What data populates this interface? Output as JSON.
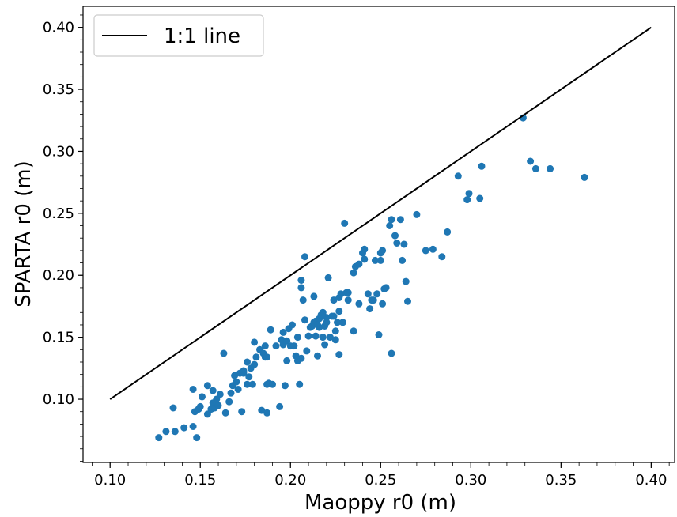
{
  "chart_data": {
    "type": "scatter",
    "title": "",
    "xlabel": "Maoppy r0 (m)",
    "ylabel": "SPARTA r0 (m)",
    "xlim": [
      0.085,
      0.413
    ],
    "ylim": [
      0.049,
      0.417
    ],
    "xticks": [
      "0.10",
      "0.15",
      "0.20",
      "0.25",
      "0.30",
      "0.35",
      "0.40"
    ],
    "yticks": [
      "0.10",
      "0.15",
      "0.20",
      "0.25",
      "0.30",
      "0.35",
      "0.40"
    ],
    "legend": {
      "position": "top-left",
      "entries": [
        "1:1 line"
      ]
    },
    "grid": false,
    "colors": {
      "points": "#1f77b4",
      "line": "#000000"
    },
    "line": {
      "name": "1:1 line",
      "x": [
        0.1,
        0.4
      ],
      "y": [
        0.1,
        0.4
      ]
    },
    "points": [
      [
        0.127,
        0.069
      ],
      [
        0.131,
        0.074
      ],
      [
        0.136,
        0.074
      ],
      [
        0.141,
        0.077
      ],
      [
        0.146,
        0.078
      ],
      [
        0.148,
        0.069
      ],
      [
        0.135,
        0.093
      ],
      [
        0.146,
        0.108
      ],
      [
        0.147,
        0.09
      ],
      [
        0.149,
        0.092
      ],
      [
        0.15,
        0.094
      ],
      [
        0.151,
        0.102
      ],
      [
        0.154,
        0.088
      ],
      [
        0.154,
        0.111
      ],
      [
        0.156,
        0.092
      ],
      [
        0.157,
        0.097
      ],
      [
        0.157,
        0.107
      ],
      [
        0.158,
        0.093
      ],
      [
        0.159,
        0.1
      ],
      [
        0.16,
        0.095
      ],
      [
        0.161,
        0.104
      ],
      [
        0.163,
        0.137
      ],
      [
        0.164,
        0.089
      ],
      [
        0.166,
        0.098
      ],
      [
        0.167,
        0.105
      ],
      [
        0.168,
        0.111
      ],
      [
        0.169,
        0.119
      ],
      [
        0.17,
        0.114
      ],
      [
        0.171,
        0.108
      ],
      [
        0.172,
        0.121
      ],
      [
        0.173,
        0.09
      ],
      [
        0.174,
        0.121
      ],
      [
        0.174,
        0.123
      ],
      [
        0.176,
        0.112
      ],
      [
        0.176,
        0.13
      ],
      [
        0.177,
        0.118
      ],
      [
        0.178,
        0.125
      ],
      [
        0.179,
        0.112
      ],
      [
        0.18,
        0.128
      ],
      [
        0.18,
        0.146
      ],
      [
        0.181,
        0.134
      ],
      [
        0.183,
        0.14
      ],
      [
        0.184,
        0.091
      ],
      [
        0.185,
        0.137
      ],
      [
        0.186,
        0.134
      ],
      [
        0.186,
        0.143
      ],
      [
        0.187,
        0.089
      ],
      [
        0.187,
        0.134
      ],
      [
        0.187,
        0.112
      ],
      [
        0.188,
        0.113
      ],
      [
        0.189,
        0.156
      ],
      [
        0.19,
        0.112
      ],
      [
        0.192,
        0.143
      ],
      [
        0.194,
        0.094
      ],
      [
        0.195,
        0.148
      ],
      [
        0.196,
        0.144
      ],
      [
        0.196,
        0.154
      ],
      [
        0.197,
        0.111
      ],
      [
        0.198,
        0.131
      ],
      [
        0.198,
        0.147
      ],
      [
        0.199,
        0.157
      ],
      [
        0.2,
        0.143
      ],
      [
        0.201,
        0.16
      ],
      [
        0.202,
        0.143
      ],
      [
        0.203,
        0.135
      ],
      [
        0.204,
        0.131
      ],
      [
        0.204,
        0.15
      ],
      [
        0.205,
        0.112
      ],
      [
        0.206,
        0.133
      ],
      [
        0.206,
        0.19
      ],
      [
        0.206,
        0.196
      ],
      [
        0.207,
        0.18
      ],
      [
        0.208,
        0.164
      ],
      [
        0.208,
        0.215
      ],
      [
        0.209,
        0.139
      ],
      [
        0.21,
        0.151
      ],
      [
        0.211,
        0.158
      ],
      [
        0.212,
        0.159
      ],
      [
        0.213,
        0.162
      ],
      [
        0.213,
        0.183
      ],
      [
        0.214,
        0.151
      ],
      [
        0.214,
        0.163
      ],
      [
        0.215,
        0.135
      ],
      [
        0.215,
        0.16
      ],
      [
        0.216,
        0.158
      ],
      [
        0.216,
        0.165
      ],
      [
        0.217,
        0.168
      ],
      [
        0.218,
        0.15
      ],
      [
        0.218,
        0.17
      ],
      [
        0.219,
        0.144
      ],
      [
        0.219,
        0.159
      ],
      [
        0.22,
        0.162
      ],
      [
        0.22,
        0.166
      ],
      [
        0.221,
        0.198
      ],
      [
        0.222,
        0.15
      ],
      [
        0.223,
        0.167
      ],
      [
        0.224,
        0.18
      ],
      [
        0.224,
        0.167
      ],
      [
        0.225,
        0.155
      ],
      [
        0.225,
        0.148
      ],
      [
        0.226,
        0.162
      ],
      [
        0.227,
        0.171
      ],
      [
        0.227,
        0.182
      ],
      [
        0.227,
        0.136
      ],
      [
        0.228,
        0.185
      ],
      [
        0.229,
        0.162
      ],
      [
        0.23,
        0.242
      ],
      [
        0.231,
        0.186
      ],
      [
        0.232,
        0.18
      ],
      [
        0.232,
        0.186
      ],
      [
        0.235,
        0.155
      ],
      [
        0.235,
        0.202
      ],
      [
        0.236,
        0.207
      ],
      [
        0.238,
        0.177
      ],
      [
        0.238,
        0.209
      ],
      [
        0.24,
        0.218
      ],
      [
        0.241,
        0.213
      ],
      [
        0.241,
        0.221
      ],
      [
        0.243,
        0.185
      ],
      [
        0.244,
        0.173
      ],
      [
        0.245,
        0.18
      ],
      [
        0.246,
        0.18
      ],
      [
        0.247,
        0.212
      ],
      [
        0.248,
        0.185
      ],
      [
        0.249,
        0.152
      ],
      [
        0.25,
        0.218
      ],
      [
        0.25,
        0.212
      ],
      [
        0.251,
        0.22
      ],
      [
        0.251,
        0.177
      ],
      [
        0.252,
        0.189
      ],
      [
        0.253,
        0.19
      ],
      [
        0.255,
        0.24
      ],
      [
        0.256,
        0.245
      ],
      [
        0.256,
        0.137
      ],
      [
        0.258,
        0.232
      ],
      [
        0.259,
        0.226
      ],
      [
        0.261,
        0.245
      ],
      [
        0.262,
        0.212
      ],
      [
        0.263,
        0.225
      ],
      [
        0.264,
        0.195
      ],
      [
        0.265,
        0.179
      ],
      [
        0.27,
        0.249
      ],
      [
        0.275,
        0.22
      ],
      [
        0.279,
        0.221
      ],
      [
        0.284,
        0.215
      ],
      [
        0.287,
        0.235
      ],
      [
        0.293,
        0.28
      ],
      [
        0.298,
        0.261
      ],
      [
        0.299,
        0.266
      ],
      [
        0.305,
        0.262
      ],
      [
        0.306,
        0.288
      ],
      [
        0.329,
        0.327
      ],
      [
        0.333,
        0.292
      ],
      [
        0.336,
        0.286
      ],
      [
        0.344,
        0.286
      ],
      [
        0.363,
        0.279
      ]
    ]
  }
}
